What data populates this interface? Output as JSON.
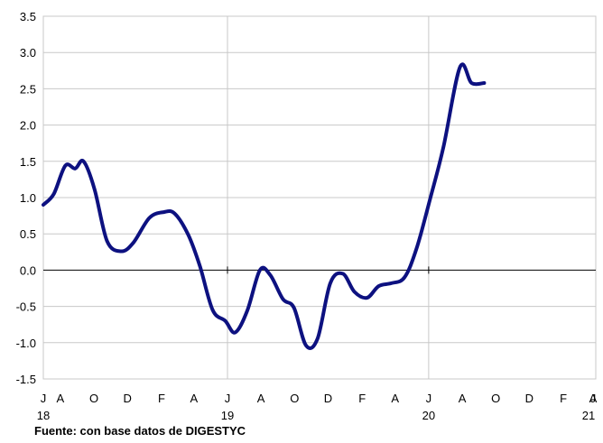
{
  "source_note": "Fuente: con base datos de DIGESTYC",
  "colors": {
    "line": "#0d1180",
    "grid": "#c8c8c8",
    "axis": "#000000"
  },
  "chart_data": {
    "type": "line",
    "title": "",
    "xlabel": "",
    "ylabel": "",
    "ylim": [
      -1.5,
      3.5
    ],
    "y_ticks": [
      "3.5",
      "3.0",
      "2.5",
      "2.0",
      "1.5",
      "1.0",
      "0.5",
      "0.0",
      "-0.5",
      "-1.0",
      "-1.5"
    ],
    "y_tick_values": [
      3.5,
      3.0,
      2.5,
      2.0,
      1.5,
      1.0,
      0.5,
      0.0,
      -0.5,
      -1.0,
      -1.5
    ],
    "x_start": "2018-07",
    "x_end": "2021-04",
    "month_labels": [
      {
        "label": "J",
        "month": "2018-07"
      },
      {
        "label": "A",
        "month": "2018-08"
      },
      {
        "label": "O",
        "month": "2018-10"
      },
      {
        "label": "D",
        "month": "2018-12"
      },
      {
        "label": "F",
        "month": "2019-02"
      },
      {
        "label": "A",
        "month": "2019-04"
      },
      {
        "label": "J",
        "month": "2019-06"
      },
      {
        "label": "A",
        "month": "2019-08"
      },
      {
        "label": "O",
        "month": "2019-10"
      },
      {
        "label": "D",
        "month": "2019-12"
      },
      {
        "label": "F",
        "month": "2020-02"
      },
      {
        "label": "A",
        "month": "2020-04"
      },
      {
        "label": "J",
        "month": "2020-06"
      },
      {
        "label": "A",
        "month": "2020-08"
      },
      {
        "label": "O",
        "month": "2020-10"
      },
      {
        "label": "D",
        "month": "2020-12"
      },
      {
        "label": "F",
        "month": "2021-02"
      },
      {
        "label": "A",
        "month": "2021-04"
      },
      {
        "label": "J",
        "month": "2021-06"
      }
    ],
    "year_labels": [
      {
        "label": "18",
        "month": "2018-07"
      },
      {
        "label": "19",
        "month": "2019-06"
      },
      {
        "label": "20",
        "month": "2020-06"
      },
      {
        "label": "21",
        "month": "2021-06"
      }
    ],
    "vertical_gridlines_at": [
      "2019-06",
      "2020-06"
    ],
    "series": [
      {
        "name": "",
        "points": [
          [
            "2018-07-01",
            0.9
          ],
          [
            "2018-07-20",
            1.05
          ],
          [
            "2018-08-10",
            1.44
          ],
          [
            "2018-08-28",
            1.4
          ],
          [
            "2018-09-12",
            1.5
          ],
          [
            "2018-10-02",
            1.12
          ],
          [
            "2018-10-25",
            0.4
          ],
          [
            "2018-11-20",
            0.26
          ],
          [
            "2018-12-12",
            0.38
          ],
          [
            "2019-01-10",
            0.72
          ],
          [
            "2019-02-05",
            0.8
          ],
          [
            "2019-02-25",
            0.78
          ],
          [
            "2019-03-22",
            0.48
          ],
          [
            "2019-04-12",
            0.05
          ],
          [
            "2019-05-05",
            -0.55
          ],
          [
            "2019-05-28",
            -0.7
          ],
          [
            "2019-06-15",
            -0.86
          ],
          [
            "2019-07-07",
            -0.56
          ],
          [
            "2019-07-30",
            0.0
          ],
          [
            "2019-08-18",
            -0.07
          ],
          [
            "2019-09-10",
            -0.4
          ],
          [
            "2019-09-30",
            -0.52
          ],
          [
            "2019-10-22",
            -1.04
          ],
          [
            "2019-11-12",
            -0.94
          ],
          [
            "2019-12-05",
            -0.18
          ],
          [
            "2019-12-28",
            -0.05
          ],
          [
            "2020-01-18",
            -0.3
          ],
          [
            "2020-02-10",
            -0.38
          ],
          [
            "2020-03-02",
            -0.22
          ],
          [
            "2020-03-25",
            -0.18
          ],
          [
            "2020-04-18",
            -0.1
          ],
          [
            "2020-05-10",
            0.3
          ],
          [
            "2020-06-05",
            1.02
          ],
          [
            "2020-06-28",
            1.7
          ],
          [
            "2020-07-28",
            2.8
          ],
          [
            "2020-08-18",
            2.58
          ],
          [
            "2020-09-10",
            2.58
          ]
        ]
      }
    ]
  }
}
